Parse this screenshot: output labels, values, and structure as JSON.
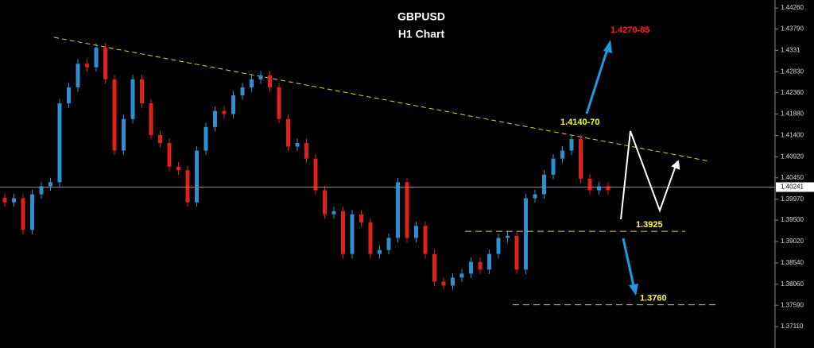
{
  "chart_data": {
    "type": "candlestick",
    "title": "GBPUSD",
    "subtitle": "H1 Chart",
    "up_color": "#2e8fd0",
    "down_color": "#e0201a",
    "open": [
      1.4,
      1.399,
      1.3999,
      1.3928,
      1.4008,
      1.4026,
      1.4035,
      1.4212,
      1.4248,
      1.4301,
      1.4293,
      1.4337,
      1.4266,
      1.4106,
      1.4177,
      1.4266,
      1.4212,
      1.4141,
      1.4123,
      1.407,
      1.4062,
      1.399,
      1.4106,
      1.4159,
      1.4195,
      1.4188,
      1.423,
      1.4248,
      1.4266,
      1.4275,
      1.4248,
      1.4177,
      1.4115,
      1.4123,
      1.4088,
      1.4017,
      1.3963,
      1.397,
      1.3874,
      1.3963,
      1.3945,
      1.3874,
      1.3883,
      1.391,
      1.4035,
      1.391,
      1.3937,
      1.3874,
      1.3812,
      1.3803,
      1.3821,
      1.383,
      1.3856,
      1.3839,
      1.3874,
      1.391,
      1.3915,
      1.3839,
      1.3999,
      1.4008,
      1.4052,
      1.4088,
      1.4106,
      1.4132,
      1.4043,
      1.4017,
      1.4026
    ],
    "high": [
      1.401,
      1.4009,
      1.4009,
      1.4018,
      1.4036,
      1.4045,
      1.4222,
      1.4258,
      1.4311,
      1.4311,
      1.4347,
      1.4347,
      1.4276,
      1.4187,
      1.4276,
      1.4276,
      1.4222,
      1.4151,
      1.4133,
      1.408,
      1.4072,
      1.4116,
      1.4169,
      1.4205,
      1.4205,
      1.424,
      1.4258,
      1.4276,
      1.4285,
      1.4285,
      1.4258,
      1.4187,
      1.4133,
      1.4133,
      1.4098,
      1.4027,
      1.398,
      1.398,
      1.3973,
      1.3973,
      1.3955,
      1.3893,
      1.392,
      1.4045,
      1.4045,
      1.3947,
      1.3947,
      1.3884,
      1.3822,
      1.3831,
      1.384,
      1.3866,
      1.3866,
      1.3884,
      1.392,
      1.3925,
      1.3925,
      1.4009,
      1.4018,
      1.4062,
      1.4098,
      1.4116,
      1.4142,
      1.4142,
      1.4053,
      1.4036,
      1.4036
    ],
    "low": [
      1.398,
      1.398,
      1.3918,
      1.3918,
      1.3998,
      1.4016,
      1.4025,
      1.4202,
      1.4238,
      1.4283,
      1.4283,
      1.4256,
      1.4096,
      1.4096,
      1.4167,
      1.4202,
      1.4131,
      1.4113,
      1.406,
      1.4052,
      1.398,
      1.398,
      1.4096,
      1.4149,
      1.4178,
      1.4178,
      1.422,
      1.4238,
      1.4256,
      1.4238,
      1.4167,
      1.4105,
      1.4105,
      1.4078,
      1.4007,
      1.3953,
      1.3953,
      1.3864,
      1.3864,
      1.3935,
      1.3864,
      1.3864,
      1.3873,
      1.39,
      1.39,
      1.39,
      1.3864,
      1.3802,
      1.3793,
      1.3793,
      1.3811,
      1.382,
      1.3829,
      1.3829,
      1.3864,
      1.39,
      1.3829,
      1.3829,
      1.3989,
      1.3998,
      1.4042,
      1.4078,
      1.4096,
      1.4033,
      1.4007,
      1.4007,
      1.4007
    ],
    "close": [
      1.399,
      1.3999,
      1.3928,
      1.4008,
      1.4026,
      1.4035,
      1.4212,
      1.4248,
      1.4301,
      1.4293,
      1.4337,
      1.4266,
      1.4106,
      1.4177,
      1.4266,
      1.4212,
      1.4141,
      1.4123,
      1.407,
      1.4062,
      1.399,
      1.4106,
      1.4159,
      1.4195,
      1.4188,
      1.423,
      1.4248,
      1.4266,
      1.4275,
      1.4248,
      1.4177,
      1.4115,
      1.4123,
      1.4088,
      1.4017,
      1.3963,
      1.397,
      1.3874,
      1.3963,
      1.3945,
      1.3874,
      1.3883,
      1.391,
      1.4035,
      1.391,
      1.3937,
      1.3874,
      1.3812,
      1.3803,
      1.3821,
      1.383,
      1.3856,
      1.3839,
      1.3874,
      1.391,
      1.3915,
      1.3839,
      1.3999,
      1.4008,
      1.4052,
      1.4088,
      1.4106,
      1.4132,
      1.4043,
      1.4017,
      1.4026,
      1.4017
    ],
    "ylim": [
      1.3663,
      1.4444
    ],
    "yticks": [
      {
        "value": 1.4426,
        "label": "1.44260"
      },
      {
        "value": 1.4379,
        "label": "1.43790"
      },
      1.4331,
      {
        "value": 1.4283,
        "label": "1.42830"
      },
      {
        "value": 1.4236,
        "label": "1.42360"
      },
      {
        "value": 1.4188,
        "label": "1.41880"
      },
      {
        "value": 1.414,
        "label": "1.41400"
      },
      {
        "value": 1.4092,
        "label": "1.40920"
      },
      {
        "value": 1.4045,
        "label": "1.40450"
      },
      {
        "value": 1.3997,
        "label": "1.39970"
      },
      {
        "value": 1.395,
        "label": "1.39500"
      },
      {
        "value": 1.3902,
        "label": "1.39020"
      },
      {
        "value": 1.3854,
        "label": "1.38540"
      },
      {
        "value": 1.3806,
        "label": "1.38060"
      },
      {
        "value": 1.3759,
        "label": "1.37590"
      },
      {
        "value": 1.3711,
        "label": "1.37110"
      }
    ],
    "current_price": 1.40241,
    "target_up": "1.4270-85",
    "resistance": "1.4140-70",
    "levels": [
      1.3925,
      {
        "value": 1.376,
        "label": "1.3760"
      }
    ]
  }
}
